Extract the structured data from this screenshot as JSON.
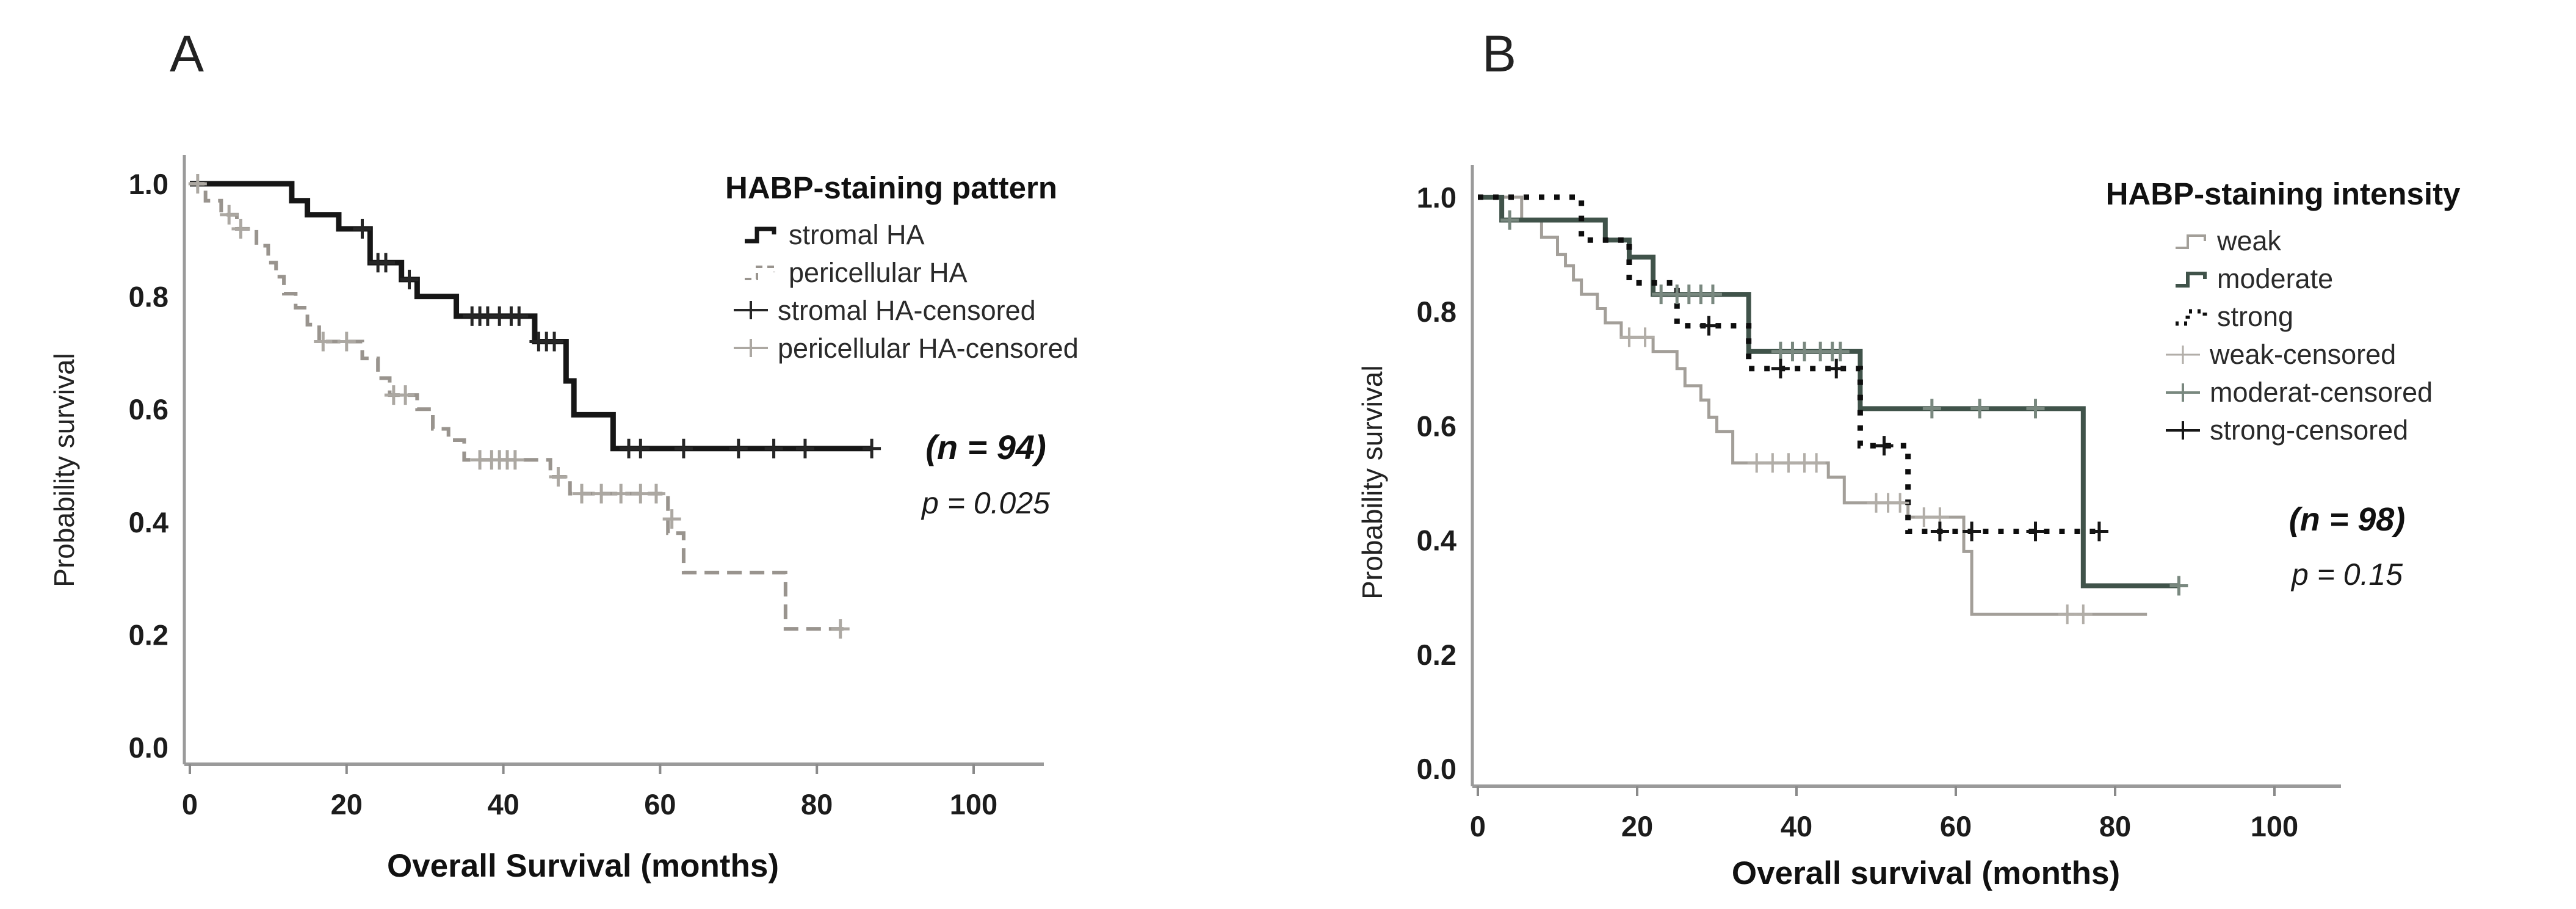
{
  "figure": {
    "background": "#ffffff"
  },
  "chart_data": [
    {
      "type": "line",
      "subtype": "kaplan_meier_step",
      "panel_letter": "A",
      "legend_title": "HABP-staining pattern",
      "xlabel": "Overall Survival (months)",
      "ylabel": "Probability survival",
      "x_ticks": [
        0,
        20,
        40,
        60,
        80,
        100
      ],
      "y_ticks": [
        "1.0",
        "0.8",
        "0.6",
        "0.4",
        "0.2",
        "0.0"
      ],
      "xlim": [
        0,
        108
      ],
      "ylim": [
        0,
        1.0
      ],
      "annotations": {
        "n": "(n = 94)",
        "p": "p = 0.025"
      },
      "series": [
        {
          "name": "stromal HA",
          "color": "#161616",
          "style": "solid",
          "width": 9,
          "points": [
            [
              0,
              1.0
            ],
            [
              13,
              1.0
            ],
            [
              13,
              0.97
            ],
            [
              15,
              0.97
            ],
            [
              15,
              0.945
            ],
            [
              19,
              0.945
            ],
            [
              19,
              0.92
            ],
            [
              23,
              0.92
            ],
            [
              23,
              0.86
            ],
            [
              27,
              0.86
            ],
            [
              27,
              0.83
            ],
            [
              29,
              0.83
            ],
            [
              29,
              0.8
            ],
            [
              34,
              0.8
            ],
            [
              34,
              0.765
            ],
            [
              44,
              0.765
            ],
            [
              44,
              0.72
            ],
            [
              48,
              0.72
            ],
            [
              48,
              0.65
            ],
            [
              49,
              0.65
            ],
            [
              49,
              0.59
            ],
            [
              54,
              0.59
            ],
            [
              54,
              0.53
            ],
            [
              87,
              0.53
            ]
          ]
        },
        {
          "name": "pericellular HA",
          "color": "#99948e",
          "style": "dashed",
          "width": 6,
          "points": [
            [
              0,
              1.0
            ],
            [
              2,
              1.0
            ],
            [
              2,
              0.97
            ],
            [
              4,
              0.97
            ],
            [
              4,
              0.945
            ],
            [
              6,
              0.945
            ],
            [
              6,
              0.92
            ],
            [
              8.5,
              0.92
            ],
            [
              8.5,
              0.89
            ],
            [
              10,
              0.89
            ],
            [
              10,
              0.86
            ],
            [
              11,
              0.86
            ],
            [
              11,
              0.835
            ],
            [
              12,
              0.835
            ],
            [
              12,
              0.805
            ],
            [
              13.5,
              0.805
            ],
            [
              13.5,
              0.78
            ],
            [
              15,
              0.78
            ],
            [
              15,
              0.75
            ],
            [
              16.5,
              0.75
            ],
            [
              16.5,
              0.72
            ],
            [
              22,
              0.72
            ],
            [
              22,
              0.69
            ],
            [
              24,
              0.69
            ],
            [
              24,
              0.655
            ],
            [
              25.5,
              0.655
            ],
            [
              25.5,
              0.625
            ],
            [
              29,
              0.625
            ],
            [
              29,
              0.6
            ],
            [
              31,
              0.6
            ],
            [
              31,
              0.565
            ],
            [
              33,
              0.565
            ],
            [
              33,
              0.545
            ],
            [
              35,
              0.545
            ],
            [
              35,
              0.51
            ],
            [
              46,
              0.51
            ],
            [
              46,
              0.48
            ],
            [
              48.5,
              0.48
            ],
            [
              48.5,
              0.45
            ],
            [
              61,
              0.45
            ],
            [
              61,
              0.38
            ],
            [
              63,
              0.38
            ],
            [
              63,
              0.31
            ],
            [
              76,
              0.31
            ],
            [
              76,
              0.21
            ],
            [
              84,
              0.21
            ]
          ]
        },
        {
          "name": "stromal HA-censored",
          "color": "#262626",
          "style": "plus",
          "width": 5,
          "points": [
            [
              22,
              0.92
            ],
            [
              24,
              0.86
            ],
            [
              25,
              0.86
            ],
            [
              28,
              0.83
            ],
            [
              36,
              0.765
            ],
            [
              37,
              0.765
            ],
            [
              38,
              0.765
            ],
            [
              39.5,
              0.765
            ],
            [
              41,
              0.765
            ],
            [
              42,
              0.765
            ],
            [
              44.5,
              0.72
            ],
            [
              45.5,
              0.72
            ],
            [
              46.5,
              0.72
            ],
            [
              56,
              0.53
            ],
            [
              57.5,
              0.53
            ],
            [
              63,
              0.53
            ],
            [
              70,
              0.53
            ],
            [
              74.5,
              0.53
            ],
            [
              78.5,
              0.53
            ],
            [
              87,
              0.53
            ]
          ]
        },
        {
          "name": "pericellular HA-censored",
          "color": "#aca8a2",
          "style": "plus",
          "width": 5,
          "points": [
            [
              1,
              1.0
            ],
            [
              5,
              0.945
            ],
            [
              6.5,
              0.92
            ],
            [
              17,
              0.72
            ],
            [
              20,
              0.72
            ],
            [
              26,
              0.625
            ],
            [
              27.5,
              0.625
            ],
            [
              37,
              0.51
            ],
            [
              38.5,
              0.51
            ],
            [
              39.5,
              0.51
            ],
            [
              40.5,
              0.51
            ],
            [
              41.5,
              0.51
            ],
            [
              47,
              0.48
            ],
            [
              50,
              0.45
            ],
            [
              52.5,
              0.45
            ],
            [
              55,
              0.45
            ],
            [
              57.5,
              0.45
            ],
            [
              59.5,
              0.45
            ],
            [
              61.5,
              0.405
            ],
            [
              83,
              0.21
            ]
          ]
        }
      ]
    },
    {
      "type": "line",
      "subtype": "kaplan_meier_step",
      "panel_letter": "B",
      "legend_title": "HABP-staining intensity",
      "xlabel": "Overall survival (months)",
      "ylabel": "Probability survival",
      "x_ticks": [
        0,
        20,
        40,
        60,
        80,
        100
      ],
      "y_ticks": [
        "1.0",
        "0.8",
        "0.6",
        "0.4",
        "0.2",
        "0.0"
      ],
      "xlim": [
        0,
        108
      ],
      "ylim": [
        0,
        1.0
      ],
      "annotations": {
        "n": "(n = 98)",
        "p": "p = 0.15"
      },
      "series": [
        {
          "name": "weak",
          "color": "#a39f99",
          "style": "solid",
          "width": 5,
          "points": [
            [
              0,
              1.0
            ],
            [
              5.5,
              1.0
            ],
            [
              5.5,
              0.96
            ],
            [
              8,
              0.96
            ],
            [
              8,
              0.93
            ],
            [
              10,
              0.93
            ],
            [
              10,
              0.9
            ],
            [
              11,
              0.9
            ],
            [
              11,
              0.88
            ],
            [
              12,
              0.88
            ],
            [
              12,
              0.855
            ],
            [
              13,
              0.855
            ],
            [
              13,
              0.83
            ],
            [
              15,
              0.83
            ],
            [
              15,
              0.805
            ],
            [
              16,
              0.805
            ],
            [
              16,
              0.78
            ],
            [
              18,
              0.78
            ],
            [
              18,
              0.755
            ],
            [
              22,
              0.755
            ],
            [
              22,
              0.73
            ],
            [
              25,
              0.73
            ],
            [
              25,
              0.7
            ],
            [
              26,
              0.7
            ],
            [
              26,
              0.67
            ],
            [
              28,
              0.67
            ],
            [
              28,
              0.645
            ],
            [
              29,
              0.645
            ],
            [
              29,
              0.615
            ],
            [
              30,
              0.615
            ],
            [
              30,
              0.59
            ],
            [
              32,
              0.59
            ],
            [
              32,
              0.535
            ],
            [
              44,
              0.535
            ],
            [
              44,
              0.51
            ],
            [
              46,
              0.51
            ],
            [
              46,
              0.465
            ],
            [
              54,
              0.465
            ],
            [
              54,
              0.44
            ],
            [
              61,
              0.44
            ],
            [
              61,
              0.38
            ],
            [
              62,
              0.38
            ],
            [
              62,
              0.27
            ],
            [
              84,
              0.27
            ]
          ]
        },
        {
          "name": "moderate",
          "color": "#40534a",
          "style": "solid",
          "width": 8,
          "points": [
            [
              0,
              1.0
            ],
            [
              3,
              1.0
            ],
            [
              3,
              0.96
            ],
            [
              16,
              0.96
            ],
            [
              16,
              0.925
            ],
            [
              19,
              0.925
            ],
            [
              19,
              0.895
            ],
            [
              22,
              0.895
            ],
            [
              22,
              0.83
            ],
            [
              34,
              0.83
            ],
            [
              34,
              0.73
            ],
            [
              48,
              0.73
            ],
            [
              48,
              0.63
            ],
            [
              76,
              0.63
            ],
            [
              76,
              0.32
            ],
            [
              88,
              0.32
            ]
          ]
        },
        {
          "name": "strong",
          "color": "#0d0d0d",
          "style": "dotted",
          "width": 9,
          "points": [
            [
              0,
              1.0
            ],
            [
              13,
              1.0
            ],
            [
              13,
              0.925
            ],
            [
              19,
              0.925
            ],
            [
              19,
              0.85
            ],
            [
              25,
              0.85
            ],
            [
              25,
              0.775
            ],
            [
              34,
              0.775
            ],
            [
              34,
              0.7
            ],
            [
              48,
              0.7
            ],
            [
              48,
              0.565
            ],
            [
              54,
              0.565
            ],
            [
              54,
              0.415
            ],
            [
              78,
              0.415
            ]
          ]
        },
        {
          "name": "weak-censored",
          "color": "#b2aea8",
          "style": "plus",
          "width": 4,
          "points": [
            [
              19,
              0.755
            ],
            [
              21,
              0.755
            ],
            [
              35,
              0.535
            ],
            [
              37,
              0.535
            ],
            [
              39,
              0.535
            ],
            [
              41,
              0.535
            ],
            [
              42.5,
              0.535
            ],
            [
              50,
              0.465
            ],
            [
              51.5,
              0.465
            ],
            [
              53,
              0.465
            ],
            [
              56,
              0.44
            ],
            [
              58,
              0.44
            ],
            [
              74,
              0.27
            ],
            [
              76,
              0.27
            ]
          ]
        },
        {
          "name": "moderat-censored",
          "color": "#79887f",
          "style": "plus",
          "width": 5,
          "points": [
            [
              4,
              0.96
            ],
            [
              23,
              0.83
            ],
            [
              25,
              0.83
            ],
            [
              26.5,
              0.83
            ],
            [
              28,
              0.83
            ],
            [
              29.5,
              0.83
            ],
            [
              38,
              0.73
            ],
            [
              39.5,
              0.73
            ],
            [
              41,
              0.73
            ],
            [
              43,
              0.73
            ],
            [
              44.5,
              0.73
            ],
            [
              45.5,
              0.73
            ],
            [
              57,
              0.63
            ],
            [
              63,
              0.63
            ],
            [
              70,
              0.63
            ],
            [
              88,
              0.32
            ]
          ]
        },
        {
          "name": "strong-censored",
          "color": "#161616",
          "style": "plus",
          "width": 5,
          "points": [
            [
              29,
              0.775
            ],
            [
              38,
              0.7
            ],
            [
              45,
              0.7
            ],
            [
              51,
              0.565
            ],
            [
              58,
              0.415
            ],
            [
              62,
              0.415
            ],
            [
              70,
              0.415
            ],
            [
              78,
              0.415
            ]
          ]
        }
      ]
    }
  ]
}
